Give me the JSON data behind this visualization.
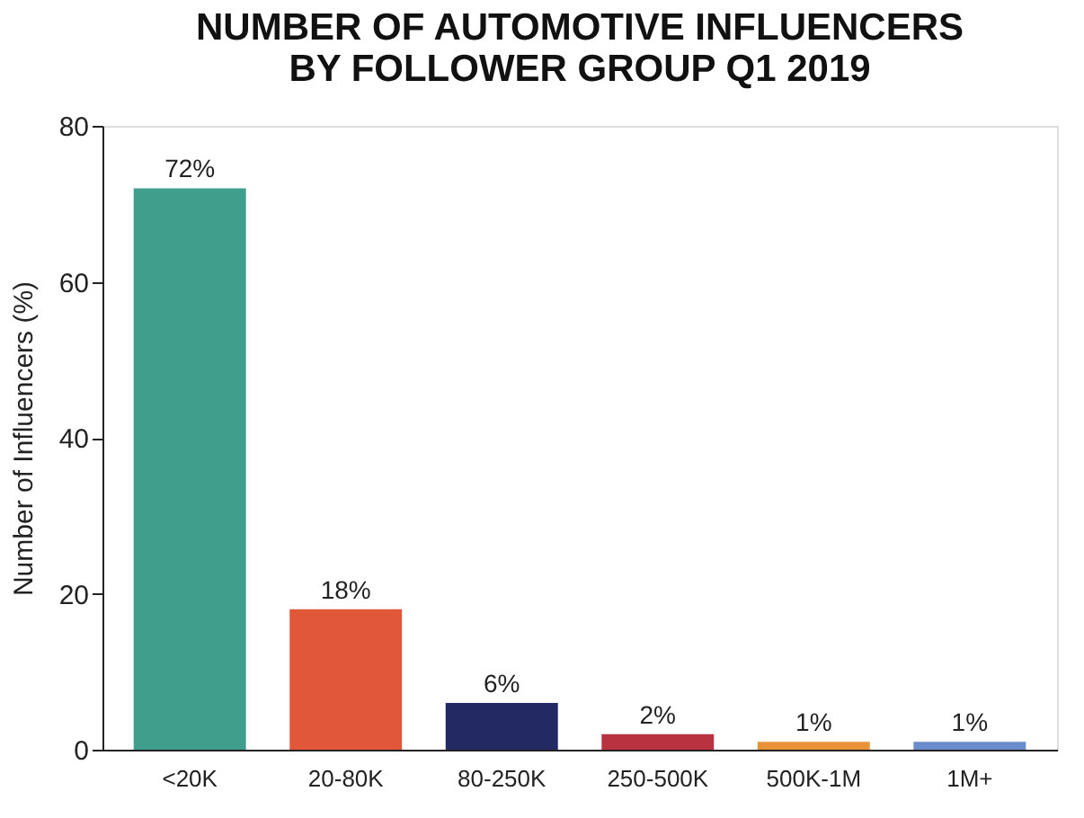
{
  "chart_data": {
    "type": "bar",
    "title": [
      "NUMBER OF AUTOMOTIVE INFLUENCERS",
      "BY FOLLOWER GROUP Q1 2019"
    ],
    "ylabel": "Number of Influencers (%)",
    "categories": [
      "<20K",
      "20-80K",
      "80-250K",
      "250-500K",
      "500K-1M",
      "1M+"
    ],
    "values": [
      72,
      18,
      6,
      2,
      1,
      1
    ],
    "value_labels": [
      "72%",
      "18%",
      "6%",
      "2%",
      "1%",
      "1%"
    ],
    "colors": [
      "#3f9e8c",
      "#e0573a",
      "#232a63",
      "#b83240",
      "#e8923a",
      "#6b8ccc"
    ],
    "ylim": [
      0,
      80
    ],
    "yticks": [
      0,
      20,
      40,
      60,
      80
    ],
    "grid": false
  }
}
